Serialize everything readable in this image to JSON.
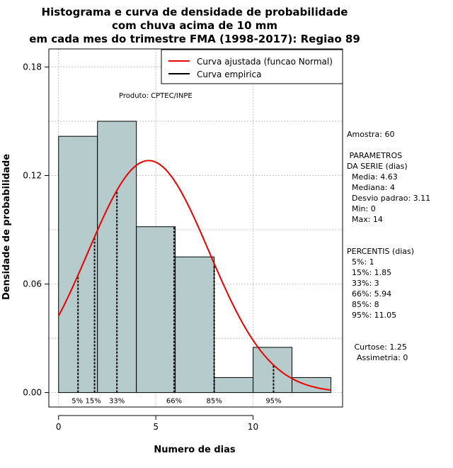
{
  "chart_data": {
    "type": "bar",
    "title_lines": [
      "Histograma e curva de densidade de probabilidade",
      "com chuva acima de 10 mm",
      "em cada mes do trimestre FMA (1998-2017): Regiao 89"
    ],
    "xlabel": "Numero de dias",
    "ylabel": "Densidade de probabilidade",
    "xlim": [
      -0.5,
      14.6
    ],
    "ylim": [
      -0.008,
      0.19
    ],
    "x_ticks": [
      0,
      5,
      10
    ],
    "y_ticks": [
      0.0,
      0.06,
      0.12,
      0.18
    ],
    "y_tick_labels": [
      "0.00",
      "0.06",
      "0.12",
      "0.18"
    ],
    "grid": true,
    "bins": [
      {
        "start": 0,
        "end": 2,
        "density": 0.1417
      },
      {
        "start": 2,
        "end": 4,
        "density": 0.15
      },
      {
        "start": 4,
        "end": 6,
        "density": 0.0917
      },
      {
        "start": 6,
        "end": 8,
        "density": 0.075
      },
      {
        "start": 8,
        "end": 10,
        "density": 0.0083
      },
      {
        "start": 10,
        "end": 12,
        "density": 0.025
      },
      {
        "start": 12,
        "end": 14,
        "density": 0.0083
      }
    ],
    "bar_color": "#b6cbcb",
    "fit_color": "#ee0000",
    "normal_fit": {
      "mean": 4.63,
      "sd": 3.11
    },
    "percentile_lines": [
      {
        "label": "5%",
        "x": 1
      },
      {
        "label": "15%",
        "x": 1.85
      },
      {
        "label": "33%",
        "x": 3
      },
      {
        "label": "66%",
        "x": 5.94
      },
      {
        "label": "85%",
        "x": 8
      },
      {
        "label": "95%",
        "x": 11.05
      }
    ],
    "legend": {
      "position": "top-right",
      "entries": [
        {
          "label": "Curva ajustada (funcao Normal)",
          "color": "#ee0000"
        },
        {
          "label": "Curva empirica",
          "color": "#000000"
        }
      ]
    },
    "product_label": "Produto: CPTEC/INPE",
    "side_panel": [
      "Amostra: 60",
      "",
      " PARAMETROS",
      "DA SERIE (dias)",
      "  Media: 4.63",
      "  Mediana: 4",
      "  Desvio padrao: 3.11",
      "  Min: 0",
      "  Max: 14",
      "",
      "",
      "PERCENTIS (dias)",
      "  5%: 1",
      "  15%: 1.85",
      "  33%: 3",
      "  66%: 5.94",
      "  85%: 8",
      "  95%: 11.05",
      "",
      "",
      "   Curtose: 1.25",
      "    Assimetria: 0"
    ]
  }
}
